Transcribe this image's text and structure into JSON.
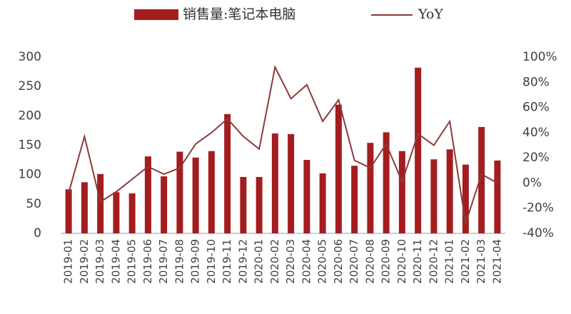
{
  "chart_data": {
    "type": "bar-line",
    "categories": [
      "2019-01",
      "2019-02",
      "2019-03",
      "2019-04",
      "2019-05",
      "2019-06",
      "2019-07",
      "2019-08",
      "2019-09",
      "2019-10",
      "2019-11",
      "2019-12",
      "2020-01",
      "2020-02",
      "2020-03",
      "2020-04",
      "2020-05",
      "2020-06",
      "2020-07",
      "2020-08",
      "2020-09",
      "2020-10",
      "2020-11",
      "2020-12",
      "2021-01",
      "2021-02",
      "2021-03",
      "2021-04"
    ],
    "series": [
      {
        "name": "销售量:笔记本电脑",
        "type": "bar",
        "axis": "y",
        "color": "#a31d1f",
        "values": [
          75,
          87,
          101,
          70,
          68,
          131,
          97,
          139,
          129,
          140,
          203,
          96,
          96,
          170,
          169,
          125,
          102,
          219,
          115,
          154,
          172,
          140,
          282,
          126,
          143,
          117,
          181,
          124
        ]
      },
      {
        "name": "YoY",
        "type": "line",
        "axis": "y2",
        "color": "#8b3a3a",
        "values": [
          -8,
          37,
          -15,
          -7,
          3,
          13,
          7,
          12,
          31,
          40,
          51,
          37,
          27,
          92,
          67,
          78,
          49,
          66,
          18,
          12,
          31,
          1,
          39,
          30,
          49,
          -32,
          7,
          0
        ]
      }
    ],
    "ylim": [
      0,
      300
    ],
    "yticks": [
      0,
      50,
      100,
      150,
      200,
      250,
      300
    ],
    "y2lim": [
      -40,
      100
    ],
    "y2ticks": [
      {
        "value": -40,
        "label": "-40%"
      },
      {
        "value": -20,
        "label": "-20%"
      },
      {
        "value": 0,
        "label": "0%"
      },
      {
        "value": 20,
        "label": "20%"
      },
      {
        "value": 40,
        "label": "40%"
      },
      {
        "value": 60,
        "label": "60%"
      },
      {
        "value": 80,
        "label": "80%"
      },
      {
        "value": 100,
        "label": "100%"
      }
    ],
    "legend": "top"
  }
}
